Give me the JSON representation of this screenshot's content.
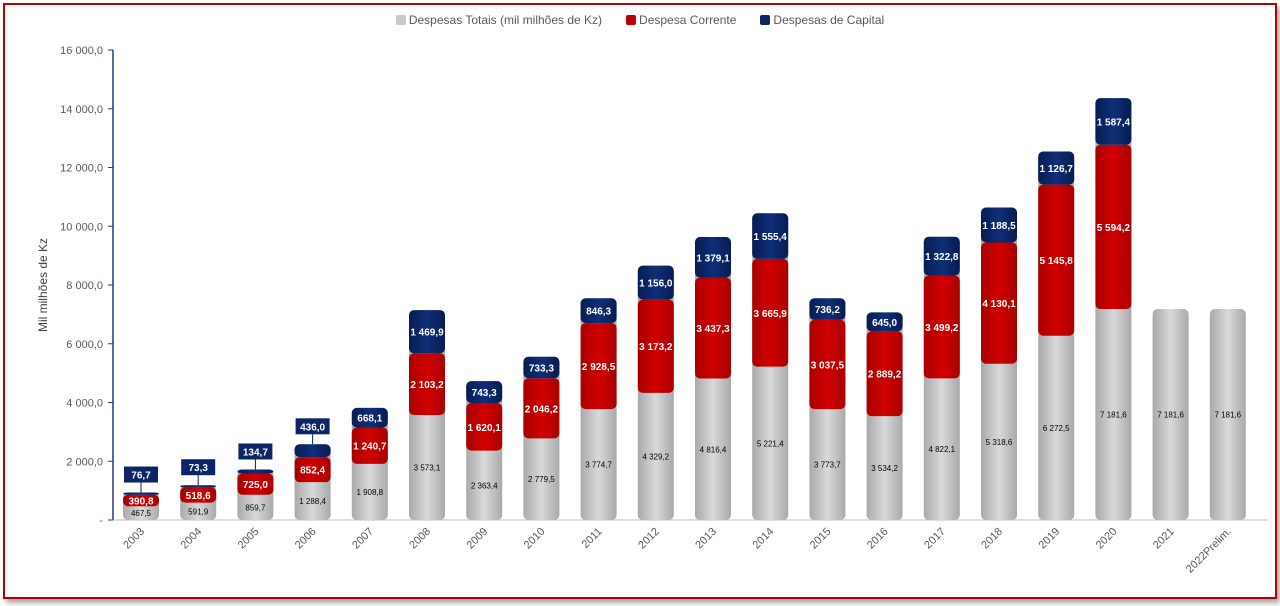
{
  "chart_data": {
    "type": "bar",
    "stacked": true,
    "title": "",
    "xlabel": "",
    "ylabel": "Mil milhões de  Kz",
    "ylim": [
      0,
      16000
    ],
    "yticks": [
      "-",
      "2 000,0",
      "4 000,0",
      "6 000,0",
      "8 000,0",
      "10 000,0",
      "12 000,0",
      "14 000,0",
      "16 000,0"
    ],
    "categories": [
      "2003",
      "2004",
      "2005",
      "2006",
      "2007",
      "2008",
      "2009",
      "2010",
      "2011",
      "2012",
      "2013",
      "2014",
      "2015",
      "2016",
      "2017",
      "2018",
      "2019",
      "2020",
      "2021",
      "2022Prelim."
    ],
    "legend_position": "top",
    "grid": false,
    "series": [
      {
        "name": "Despesas Totais (mil milhões de Kz)",
        "color": "#c8c8c8",
        "values": [
          467.5,
          591.9,
          859.7,
          1288.4,
          1908.8,
          3573.1,
          2363.4,
          2779.5,
          3774.7,
          4329.2,
          4816.4,
          5221.4,
          3773.7,
          3534.2,
          4822.1,
          5318.6,
          6272.5,
          7181.6,
          7181.6,
          7181.6
        ],
        "labels": [
          "467,5",
          "591,9",
          "859,7",
          "1 288,4",
          "1 908,8",
          "3 573,1",
          "2 363,4",
          "2 779,5",
          "3 774,7",
          "4 329,2",
          "4 816,4",
          "5 221,4",
          "3 773,7",
          "3 534,2",
          "4 822,1",
          "5 318,6",
          "6 272,5",
          "7 181,6",
          "7 181,6",
          "7 181,6"
        ]
      },
      {
        "name": "Despesa Corrente",
        "color": "#c00000",
        "values": [
          390.8,
          518.6,
          725.0,
          852.4,
          1240.7,
          2103.2,
          1620.1,
          2046.2,
          2928.5,
          3173.2,
          3437.3,
          3665.9,
          3037.5,
          2889.2,
          3499.2,
          4130.1,
          5145.8,
          5594.2,
          null,
          null
        ],
        "labels": [
          "390,8",
          "518,6",
          "725,0",
          "852,4",
          "1 240,7",
          "2 103,2",
          "1 620,1",
          "2 046,2",
          "2 928,5",
          "3 173,2",
          "3 437,3",
          "3 665,9",
          "3 037,5",
          "2 889,2",
          "3 499,2",
          "4 130,1",
          "5 145,8",
          "5 594,2",
          "",
          ""
        ]
      },
      {
        "name": "Despesas de Capital",
        "color": "#0b2566",
        "values": [
          76.7,
          73.3,
          134.7,
          436.0,
          668.1,
          1469.9,
          743.3,
          733.3,
          846.3,
          1156.0,
          1379.1,
          1555.4,
          736.2,
          645.0,
          1322.8,
          1188.5,
          1126.7,
          1587.4,
          null,
          null
        ],
        "labels": [
          "76,7",
          "73,3",
          "134,7",
          "436,0",
          "668,1",
          "1 469,9",
          "743,3",
          "733,3",
          "846,3",
          "1 156,0",
          "1 379,1",
          "1 555,4",
          "736,2",
          "645,0",
          "1 322,8",
          "1 188,5",
          "1 126,7",
          "1 587,4",
          "",
          ""
        ]
      }
    ]
  }
}
